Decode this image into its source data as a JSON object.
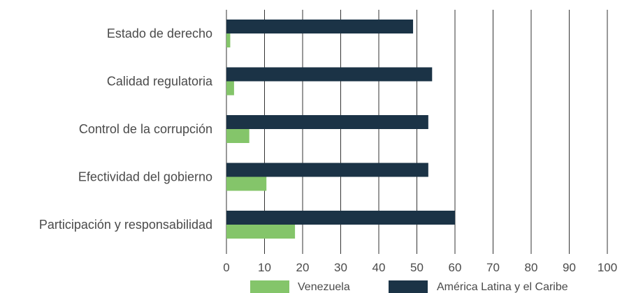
{
  "chart_data": {
    "type": "bar",
    "orientation": "horizontal",
    "categories": [
      "Estado de derecho",
      "Calidad regulatoria",
      "Control de la corrupción",
      "Efectividad del gobierno",
      "Participación y responsabilidad"
    ],
    "series": [
      {
        "name": "América Latina y el Caribe",
        "values": [
          49,
          54,
          53,
          53,
          60
        ],
        "color": "#1b3346"
      },
      {
        "name": "Venezuela",
        "values": [
          1,
          2,
          6,
          10.5,
          18
        ],
        "color": "#84c56a"
      }
    ],
    "xlim": [
      0,
      100
    ],
    "xticks": [
      0,
      10,
      20,
      30,
      40,
      50,
      60,
      70,
      80,
      90,
      100
    ],
    "grid": true,
    "legend_order": [
      "Venezuela",
      "América Latina y el Caribe"
    ],
    "legend_position": "bottom",
    "title": "",
    "xlabel": "",
    "ylabel": ""
  }
}
